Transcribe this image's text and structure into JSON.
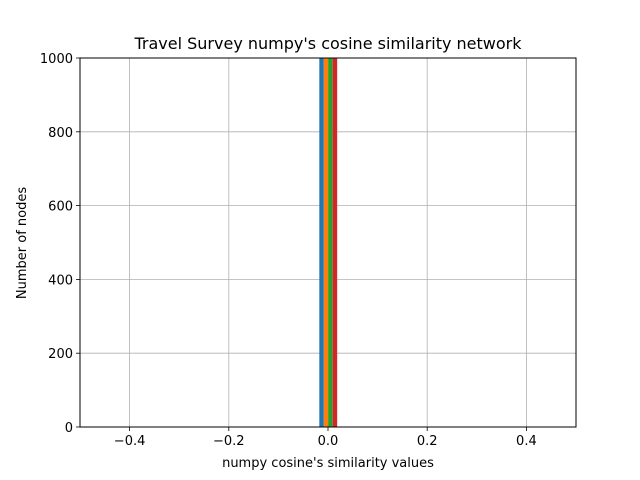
{
  "chart_data": {
    "type": "bar",
    "title": "Travel Survey numpy's cosine similarity network",
    "xlabel": "numpy cosine's similarity values",
    "ylabel": "Number of nodes",
    "xlim": [
      -0.5,
      0.5
    ],
    "ylim": [
      0,
      1000
    ],
    "xticks": [
      -0.4,
      -0.2,
      0.0,
      0.2,
      0.4
    ],
    "xtick_labels": [
      "−0.4",
      "−0.2",
      "0.0",
      "0.2",
      "0.4"
    ],
    "yticks": [
      0,
      200,
      400,
      600,
      800,
      1000
    ],
    "ytick_labels": [
      "0",
      "200",
      "400",
      "600",
      "800",
      "1000"
    ],
    "grid": true,
    "bars": [
      {
        "x0": -0.0175,
        "x1": -0.0085,
        "value": 1000,
        "color": "#1f77b4"
      },
      {
        "x0": -0.0085,
        "x1": 0.0005,
        "value": 1000,
        "color": "#ff7f0e"
      },
      {
        "x0": 0.0005,
        "x1": 0.0095,
        "value": 1000,
        "color": "#2ca02c"
      },
      {
        "x0": 0.0095,
        "x1": 0.0185,
        "value": 1000,
        "color": "#d62728"
      }
    ]
  }
}
